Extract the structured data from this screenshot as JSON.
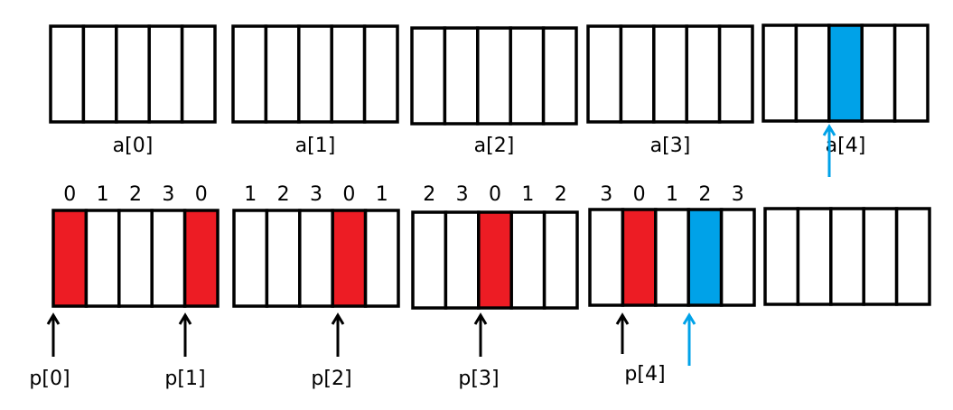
{
  "top_arrays": [
    {
      "label": "a[0]"
    },
    {
      "label": "a[1]"
    },
    {
      "label": "a[2]"
    },
    {
      "label": "a[3]"
    },
    {
      "label": "a[4]"
    }
  ],
  "bottom_arrays": [
    {
      "indices": [
        0,
        1,
        2,
        3,
        0
      ]
    },
    {
      "indices": [
        1,
        2,
        3,
        0,
        1
      ]
    },
    {
      "indices": [
        2,
        3,
        0,
        1,
        2
      ]
    },
    {
      "indices": [
        3,
        0,
        1,
        2,
        3
      ]
    }
  ],
  "pointers": [
    {
      "label": "p[0]"
    },
    {
      "label": "p[1]"
    },
    {
      "label": "p[2]"
    },
    {
      "label": "p[3]"
    },
    {
      "label": "p[4]"
    }
  ]
}
